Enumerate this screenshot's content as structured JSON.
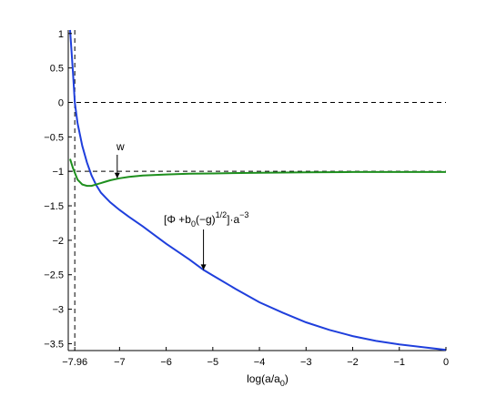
{
  "chart_data": {
    "type": "line",
    "xlabel": {
      "main": "log(a/a",
      "sub": "0",
      "tail": ")"
    },
    "xlim": [
      -8.1,
      0
    ],
    "ylim": [
      -3.6,
      1.05
    ],
    "x_ticks": [
      -7.96,
      -7,
      -6,
      -5,
      -4,
      -3,
      -2,
      -1,
      0
    ],
    "x_tick_labels": [
      "−7.96",
      "−7",
      "−6",
      "−5",
      "−4",
      "−3",
      "−2",
      "−1",
      "0"
    ],
    "y_ticks": [
      1,
      0.5,
      0,
      -0.5,
      -1,
      -1.5,
      -2,
      -2.5,
      -3,
      -3.5
    ],
    "y_tick_labels": [
      "1",
      "0.5",
      "0",
      "−0.5",
      "−1",
      "−1.5",
      "−2",
      "−2.5",
      "−3",
      "−3.5"
    ],
    "reference_lines": {
      "horizontal": [
        0,
        -1
      ],
      "vertical": [
        -7.96
      ]
    },
    "series": [
      {
        "color": "#1f3fdc",
        "x": [
          -8.06,
          -8.0,
          -7.96,
          -7.9,
          -7.8,
          -7.7,
          -7.6,
          -7.5,
          -7.4,
          -7.3,
          -7.2,
          -7.0,
          -6.8,
          -6.5,
          -6.2,
          -6.0,
          -5.5,
          -5.2,
          -5.0,
          -4.5,
          -4.0,
          -3.5,
          -3.0,
          -2.5,
          -2.0,
          -1.5,
          -1.0,
          -0.5,
          0.0
        ],
        "y": [
          1.05,
          0.45,
          0.0,
          -0.3,
          -0.63,
          -0.87,
          -1.06,
          -1.2,
          -1.31,
          -1.38,
          -1.45,
          -1.56,
          -1.66,
          -1.8,
          -1.95,
          -2.05,
          -2.28,
          -2.43,
          -2.51,
          -2.71,
          -2.9,
          -3.05,
          -3.19,
          -3.3,
          -3.39,
          -3.46,
          -3.51,
          -3.55,
          -3.59
        ]
      },
      {
        "color": "#1e8f1e",
        "x": [
          -8.06,
          -8.0,
          -7.9,
          -7.8,
          -7.7,
          -7.6,
          -7.5,
          -7.4,
          -7.3,
          -7.2,
          -7.0,
          -6.8,
          -6.5,
          -6.0,
          -5.5,
          -5.0,
          -4.0,
          -3.0,
          -2.0,
          -1.0,
          0.0
        ],
        "y": [
          -0.82,
          -0.95,
          -1.12,
          -1.19,
          -1.21,
          -1.21,
          -1.19,
          -1.17,
          -1.15,
          -1.13,
          -1.1,
          -1.08,
          -1.06,
          -1.045,
          -1.035,
          -1.03,
          -1.02,
          -1.015,
          -1.01,
          -1.01,
          -1.01
        ]
      }
    ],
    "annotations": [
      {
        "text": "w",
        "arrow_to": [
          -7.05,
          -1.1
        ]
      },
      {
        "text": {
          "p1": "[Φ +b",
          "sub": "0",
          "p2": "(−g)",
          "sup1": "1/2",
          "p3": "]·a",
          "sup2": "−3"
        },
        "arrow_to": [
          -5.2,
          -2.43
        ]
      }
    ]
  }
}
